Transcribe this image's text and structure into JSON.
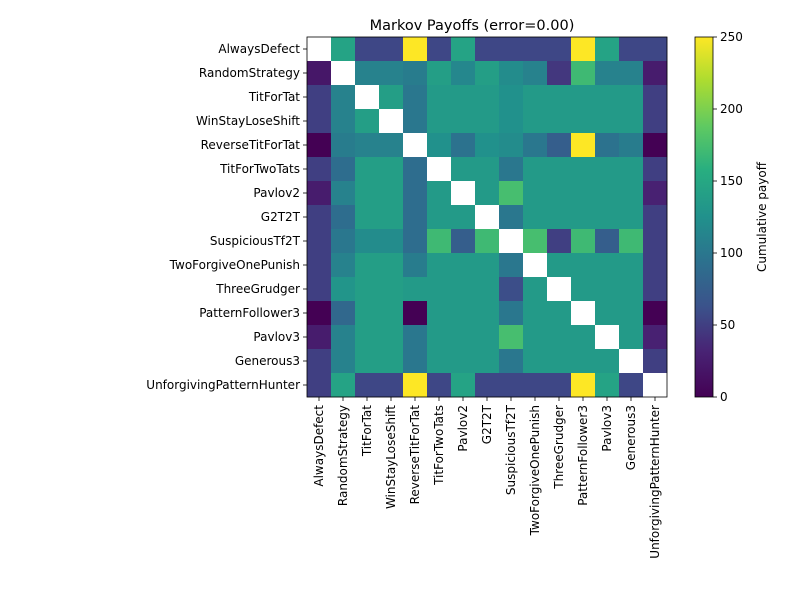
{
  "chart_data": {
    "type": "heatmap",
    "title": "Markov Payoffs (error=0.00)",
    "xlabel": "",
    "ylabel": "",
    "labels": [
      "AlwaysDefect",
      "RandomStrategy",
      "TitForTat",
      "WinStayLoseShift",
      "ReverseTitForTat",
      "TitForTwoTats",
      "Pavlov2",
      "G2T2T",
      "SuspiciousTf2T",
      "TwoForgiveOnePunish",
      "ThreeGrudger",
      "PatternFollower3",
      "Pavlov3",
      "Generous3",
      "UnforgivingPatternHunter"
    ],
    "matrix": [
      [
        null,
        145,
        55,
        55,
        250,
        55,
        145,
        55,
        55,
        55,
        55,
        250,
        145,
        55,
        55
      ],
      [
        20,
        null,
        110,
        110,
        105,
        140,
        115,
        140,
        120,
        110,
        45,
        170,
        110,
        110,
        25
      ],
      [
        50,
        110,
        null,
        140,
        100,
        135,
        135,
        135,
        125,
        135,
        135,
        135,
        135,
        135,
        50
      ],
      [
        50,
        110,
        140,
        null,
        100,
        135,
        135,
        135,
        125,
        135,
        135,
        135,
        135,
        135,
        50
      ],
      [
        0,
        105,
        110,
        110,
        null,
        125,
        95,
        125,
        120,
        100,
        75,
        250,
        95,
        105,
        0
      ],
      [
        50,
        90,
        140,
        140,
        90,
        null,
        135,
        135,
        100,
        135,
        135,
        135,
        135,
        135,
        50
      ],
      [
        25,
        110,
        140,
        140,
        90,
        135,
        null,
        135,
        175,
        135,
        135,
        135,
        135,
        135,
        30
      ],
      [
        50,
        90,
        140,
        140,
        90,
        135,
        135,
        null,
        100,
        135,
        135,
        135,
        135,
        135,
        50
      ],
      [
        50,
        100,
        120,
        120,
        90,
        170,
        75,
        170,
        null,
        175,
        50,
        170,
        75,
        170,
        50
      ],
      [
        50,
        110,
        140,
        140,
        105,
        135,
        135,
        135,
        100,
        null,
        135,
        135,
        135,
        135,
        50
      ],
      [
        50,
        130,
        140,
        140,
        135,
        135,
        135,
        135,
        60,
        135,
        null,
        135,
        135,
        135,
        50
      ],
      [
        0,
        85,
        140,
        140,
        0,
        135,
        135,
        135,
        100,
        135,
        135,
        null,
        135,
        135,
        0
      ],
      [
        25,
        110,
        140,
        140,
        100,
        135,
        135,
        135,
        175,
        135,
        135,
        135,
        null,
        135,
        30
      ],
      [
        50,
        110,
        140,
        140,
        100,
        135,
        135,
        135,
        100,
        135,
        135,
        135,
        135,
        null,
        50
      ],
      [
        50,
        145,
        55,
        55,
        250,
        55,
        145,
        55,
        55,
        55,
        55,
        250,
        145,
        55,
        null
      ]
    ],
    "missing_color": "#ffffff",
    "vmin": 0,
    "vmax": 250,
    "colormap": "viridis",
    "colorbar": {
      "label": "Cumulative payoff",
      "ticks": [
        "0",
        "50",
        "100",
        "150",
        "200",
        "250"
      ]
    }
  }
}
